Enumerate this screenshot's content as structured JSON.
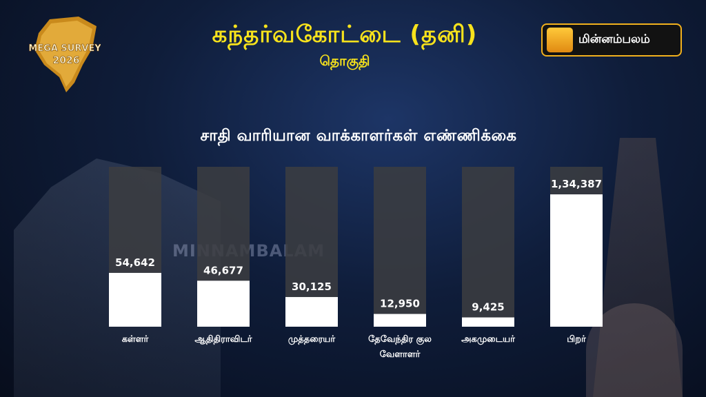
{
  "header": {
    "title": "கந்தர்வகோட்டை (தனி)",
    "subtitle": "தொகுதி",
    "logo_text_line1": "MEGA SURVEY",
    "logo_text_line2": "2026",
    "brand_name": "மின்னம்பலம்"
  },
  "watermark": "MINNAMBALAM",
  "chart_data": {
    "type": "bar",
    "title": "சாதி வாரியான வாக்காளர்கள் எண்ணிக்கை",
    "categories": [
      [
        "கள்ளர்"
      ],
      [
        "ஆதிதிராவிடர்"
      ],
      [
        "முத்தரையர்"
      ],
      [
        "தேவேந்திர குல",
        "வேளாளர்"
      ],
      [
        "அகமுடையர்"
      ],
      [
        "பிறர்"
      ]
    ],
    "values": [
      54642,
      46677,
      30125,
      12950,
      9425,
      134387
    ],
    "value_labels": [
      "54,642",
      "46,677",
      "30,125",
      "12,950",
      "9,425",
      "1,34,387"
    ],
    "ylim": [
      0,
      134387
    ],
    "grid": false,
    "legend": "none",
    "colors": {
      "bar_fill": "#ffffff",
      "bar_track": "#3c3d41",
      "title": "#f7e21c"
    }
  }
}
